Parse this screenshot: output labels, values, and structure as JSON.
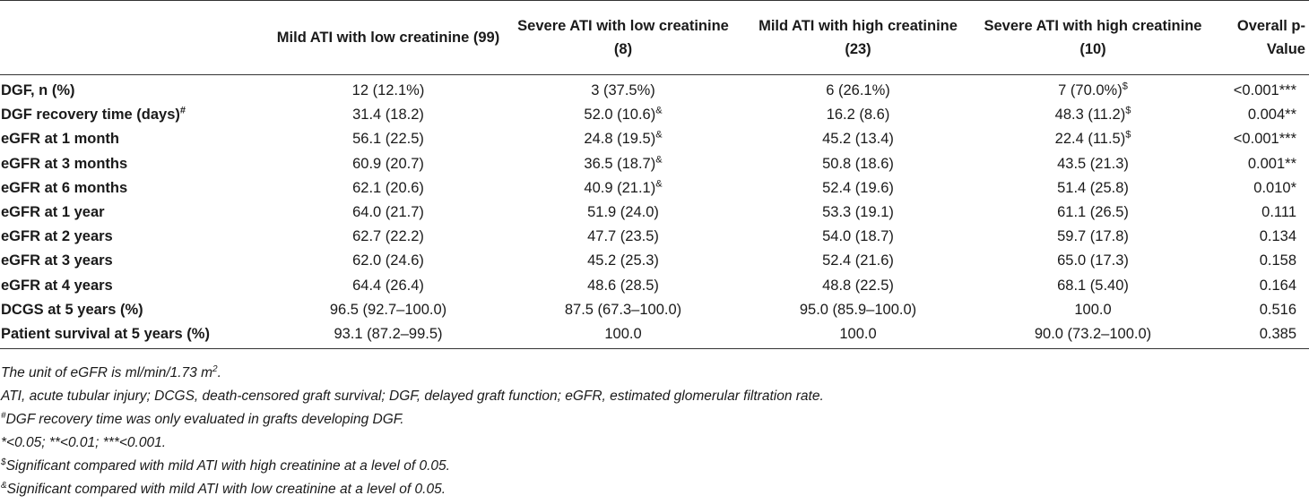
{
  "table": {
    "headers": {
      "col1": "Mild ATI with low creatinine (99)",
      "col2": "Severe ATI with low creatinine (8)",
      "col3": "Mild ATI with high creatinine (23)",
      "col4": "Severe ATI with high creatinine (10)",
      "col5": "Overall p-Value"
    },
    "rows": [
      {
        "label": "DGF, n (%)",
        "label_sup": "",
        "c1": "12 (12.1%)",
        "c2": "3 (37.5%)",
        "c2_sup": "",
        "c3": "6 (26.1%)",
        "c4": "7 (70.0%)",
        "c4_sup": "$",
        "p": "<0.001***"
      },
      {
        "label": "DGF recovery time (days)",
        "label_sup": "#",
        "c1": "31.4 (18.2)",
        "c2": "52.0 (10.6)",
        "c2_sup": "&",
        "c3": "16.2 (8.6)",
        "c4": "48.3 (11.2)",
        "c4_sup": "$",
        "p": "0.004**"
      },
      {
        "label": "eGFR at 1 month",
        "label_sup": "",
        "c1": "56.1 (22.5)",
        "c2": "24.8 (19.5)",
        "c2_sup": "&",
        "c3": "45.2 (13.4)",
        "c4": "22.4 (11.5)",
        "c4_sup": "$",
        "p": "<0.001***"
      },
      {
        "label": "eGFR at 3 months",
        "label_sup": "",
        "c1": "60.9 (20.7)",
        "c2": "36.5 (18.7)",
        "c2_sup": "&",
        "c3": "50.8 (18.6)",
        "c4": "43.5 (21.3)",
        "c4_sup": "",
        "p": "0.001**"
      },
      {
        "label": "eGFR at 6 months",
        "label_sup": "",
        "c1": "62.1 (20.6)",
        "c2": "40.9 (21.1)",
        "c2_sup": "&",
        "c3": "52.4 (19.6)",
        "c4": "51.4 (25.8)",
        "c4_sup": "",
        "p": "0.010*"
      },
      {
        "label": "eGFR at 1 year",
        "label_sup": "",
        "c1": "64.0 (21.7)",
        "c2": "51.9 (24.0)",
        "c2_sup": "",
        "c3": "53.3 (19.1)",
        "c4": "61.1 (26.5)",
        "c4_sup": "",
        "p": "0.111"
      },
      {
        "label": "eGFR at 2 years",
        "label_sup": "",
        "c1": "62.7 (22.2)",
        "c2": "47.7 (23.5)",
        "c2_sup": "",
        "c3": "54.0 (18.7)",
        "c4": "59.7 (17.8)",
        "c4_sup": "",
        "p": "0.134"
      },
      {
        "label": "eGFR at 3 years",
        "label_sup": "",
        "c1": "62.0 (24.6)",
        "c2": "45.2 (25.3)",
        "c2_sup": "",
        "c3": "52.4 (21.6)",
        "c4": "65.0 (17.3)",
        "c4_sup": "",
        "p": "0.158"
      },
      {
        "label": "eGFR at 4 years",
        "label_sup": "",
        "c1": "64.4 (26.4)",
        "c2": "48.6 (28.5)",
        "c2_sup": "",
        "c3": "48.8 (22.5)",
        "c4": "68.1 (5.40)",
        "c4_sup": "",
        "p": "0.164"
      },
      {
        "label": "DCGS at 5 years (%)",
        "label_sup": "",
        "c1": "96.5 (92.7–100.0)",
        "c2": "87.5 (67.3–100.0)",
        "c2_sup": "",
        "c3": "95.0 (85.9–100.0)",
        "c4": "100.0",
        "c4_sup": "",
        "p": "0.516"
      },
      {
        "label": "Patient survival at 5 years (%)",
        "label_sup": "",
        "c1": "93.1 (87.2–99.5)",
        "c2": "100.0",
        "c2_sup": "",
        "c3": "100.0",
        "c4": "90.0 (73.2–100.0)",
        "c4_sup": "",
        "p": "0.385"
      }
    ]
  },
  "footnotes": {
    "unit_text": "The unit of eGFR is ml/min/1.73 m",
    "unit_sup": "2",
    "unit_end": ".",
    "abbreviations": "ATI, acute tubular injury; DCGS, death-censored graft survival; DGF, delayed graft function; eGFR, estimated glomerular filtration rate.",
    "hash_sup": "#",
    "hash_text": "DGF recovery time was only evaluated in grafts developing DGF.",
    "significance": "*<0.05; **<0.01; ***<0.001.",
    "dollar_sup": "$",
    "dollar_text": "Significant compared with mild ATI with high creatinine at a level of 0.05.",
    "amp_sup": "&",
    "amp_text": "Significant compared with mild ATI with low creatinine at a level of 0.05."
  }
}
